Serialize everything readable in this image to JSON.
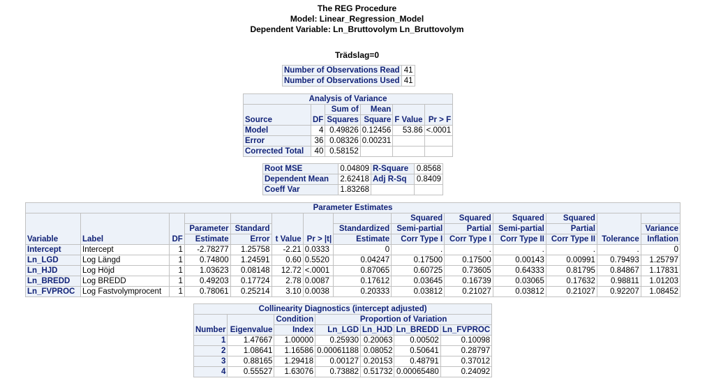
{
  "header": {
    "title": "The REG Procedure",
    "model": "Model: Linear_Regression_Model",
    "dependent": "Dependent Variable: Ln_Bruttovolym Ln_Bruttovolym",
    "by_group": "Trädslag=0"
  },
  "observations": {
    "read_label": "Number of Observations Read",
    "read_value": "41",
    "used_label": "Number of Observations Used",
    "used_value": "41"
  },
  "anova": {
    "title": "Analysis of Variance",
    "col_source": "Source",
    "col_df": "DF",
    "col_ss_1": "Sum of",
    "col_ss_2": "Squares",
    "col_ms_1": "Mean",
    "col_ms_2": "Square",
    "col_f": "F Value",
    "col_p": "Pr > F",
    "rows": [
      {
        "source": "Model",
        "df": "4",
        "ss": "0.49826",
        "ms": "0.12456",
        "f": "53.86",
        "p": "<.0001"
      },
      {
        "source": "Error",
        "df": "36",
        "ss": "0.08326",
        "ms": "0.00231",
        "f": "",
        "p": ""
      },
      {
        "source": "Corrected Total",
        "df": "40",
        "ss": "0.58152",
        "ms": "",
        "f": "",
        "p": ""
      }
    ]
  },
  "fit": {
    "rows": [
      {
        "l1": "Root MSE",
        "v1": "0.04809",
        "l2": "R-Square",
        "v2": "0.8568"
      },
      {
        "l1": "Dependent Mean",
        "v1": "2.62418",
        "l2": "Adj R-Sq",
        "v2": "0.8409"
      },
      {
        "l1": "Coeff Var",
        "v1": "1.83268",
        "l2": "",
        "v2": ""
      }
    ]
  },
  "params": {
    "title": "Parameter Estimates",
    "headers": {
      "variable": "Variable",
      "label": "Label",
      "df": "DF",
      "est_1": "Parameter",
      "est_2": "Estimate",
      "se_1": "Standard",
      "se_2": "Error",
      "t": "t Value",
      "p": "Pr > |t|",
      "std_1": "Standardized",
      "std_2": "Estimate",
      "sp1_1": "Squared",
      "sp1_2": "Semi-partial",
      "sp1_3": "Corr Type I",
      "pc1_1": "Squared",
      "pc1_2": "Partial",
      "pc1_3": "Corr Type I",
      "sp2_1": "Squared",
      "sp2_2": "Semi-partial",
      "sp2_3": "Corr Type II",
      "pc2_1": "Squared",
      "pc2_2": "Partial",
      "pc2_3": "Corr Type II",
      "tol": "Tolerance",
      "vif_1": "Variance",
      "vif_2": "Inflation"
    },
    "rows": [
      {
        "var": "Intercept",
        "label": "Intercept",
        "df": "1",
        "est": "-2.78277",
        "se": "1.25758",
        "t": "-2.21",
        "p": "0.0333",
        "std": "0",
        "sp1": ".",
        "pc1": ".",
        "sp2": ".",
        "pc2": ".",
        "tol": ".",
        "vif": "0"
      },
      {
        "var": "Ln_LGD",
        "label": "Log Längd",
        "df": "1",
        "est": "0.74800",
        "se": "1.24591",
        "t": "0.60",
        "p": "0.5520",
        "std": "0.04247",
        "sp1": "0.17500",
        "pc1": "0.17500",
        "sp2": "0.00143",
        "pc2": "0.00991",
        "tol": "0.79493",
        "vif": "1.25797"
      },
      {
        "var": "Ln_HJD",
        "label": "Log Höjd",
        "df": "1",
        "est": "1.03623",
        "se": "0.08148",
        "t": "12.72",
        "p": "<.0001",
        "std": "0.87065",
        "sp1": "0.60725",
        "pc1": "0.73605",
        "sp2": "0.64333",
        "pc2": "0.81795",
        "tol": "0.84867",
        "vif": "1.17831"
      },
      {
        "var": "Ln_BREDD",
        "label": "Log BREDD",
        "df": "1",
        "est": "0.49203",
        "se": "0.17724",
        "t": "2.78",
        "p": "0.0087",
        "std": "0.17612",
        "sp1": "0.03645",
        "pc1": "0.16739",
        "sp2": "0.03065",
        "pc2": "0.17632",
        "tol": "0.98811",
        "vif": "1.01203"
      },
      {
        "var": "Ln_FVPROC",
        "label": "Log Fastvolymprocent",
        "df": "1",
        "est": "0.78061",
        "se": "0.25214",
        "t": "3.10",
        "p": "0.0038",
        "std": "0.20333",
        "sp1": "0.03812",
        "pc1": "0.21027",
        "sp2": "0.03812",
        "pc2": "0.21027",
        "tol": "0.92207",
        "vif": "1.08452"
      }
    ]
  },
  "collin": {
    "title": "Collinearity Diagnostics (intercept adjusted)",
    "col_number": "Number",
    "col_eigen": "Eigenvalue",
    "col_ci_1": "Condition",
    "col_ci_2": "Index",
    "group_label": "Proportion of Variation",
    "col_lgd": "Ln_LGD",
    "col_hjd": "Ln_HJD",
    "col_bredd": "Ln_BREDD",
    "col_fvproc": "Ln_FVPROC",
    "rows": [
      {
        "n": "1",
        "eig": "1.47667",
        "ci": "1.00000",
        "lgd": "0.25930",
        "hjd": "0.20063",
        "bredd": "0.00502",
        "fv": "0.10098"
      },
      {
        "n": "2",
        "eig": "1.08641",
        "ci": "1.16586",
        "lgd": "0.00061188",
        "hjd": "0.08052",
        "bredd": "0.50641",
        "fv": "0.28797"
      },
      {
        "n": "3",
        "eig": "0.88165",
        "ci": "1.29418",
        "lgd": "0.00127",
        "hjd": "0.20153",
        "bredd": "0.48791",
        "fv": "0.37012"
      },
      {
        "n": "4",
        "eig": "0.55527",
        "ci": "1.63076",
        "lgd": "0.73882",
        "hjd": "0.51732",
        "bredd": "0.00065480",
        "fv": "0.24092"
      }
    ]
  }
}
